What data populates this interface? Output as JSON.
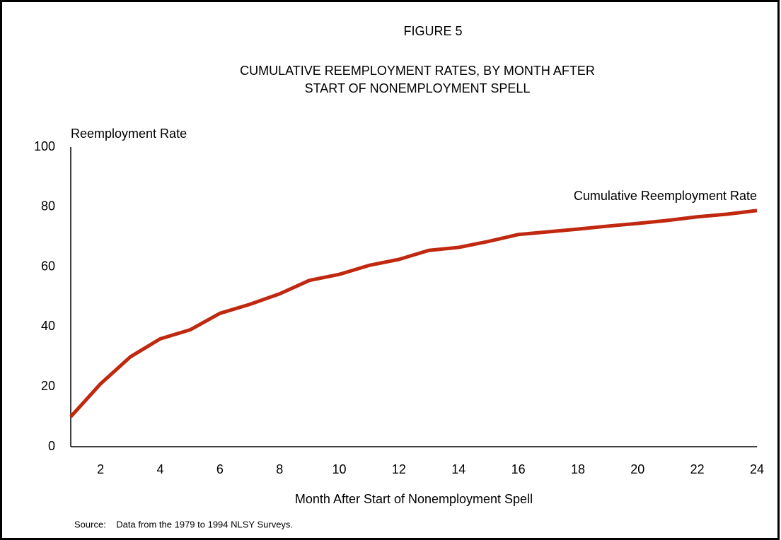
{
  "chart_data": {
    "type": "line",
    "title": "FIGURE 5",
    "subtitle": [
      "CUMULATIVE REEMPLOYMENT RATES, BY MONTH AFTER",
      "START OF NONEMPLOYMENT SPELL"
    ],
    "y_axis_label": "Reemployment Rate",
    "x_axis_label": "Month After Start of Nonemployment Spell",
    "source": "Source:    Data from the 1979 to 1994 NLSY Surveys.",
    "x": [
      1,
      2,
      3,
      4,
      5,
      6,
      7,
      8,
      9,
      10,
      11,
      12,
      13,
      14,
      15,
      16,
      17,
      18,
      19,
      20,
      21,
      22,
      23,
      24
    ],
    "series": [
      {
        "name": "Cumulative Reemployment Rate",
        "color": "#c0280f",
        "values": [
          10,
          21,
          30,
          36,
          39,
          44.5,
          47.5,
          51,
          55.5,
          57.5,
          60.5,
          62.5,
          65.5,
          66.5,
          68.5,
          70.8,
          71.7,
          72.6,
          73.6,
          74.5,
          75.5,
          76.7,
          77.6,
          78.8
        ]
      }
    ],
    "xlim": [
      1,
      24
    ],
    "xticks": [
      2,
      4,
      6,
      8,
      10,
      12,
      14,
      16,
      18,
      20,
      22,
      24
    ],
    "ylim": [
      0,
      100
    ],
    "yticks": [
      0,
      20,
      40,
      60,
      80,
      100
    ],
    "grid": false
  }
}
